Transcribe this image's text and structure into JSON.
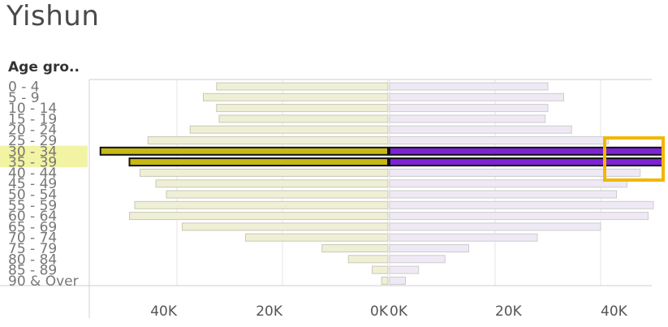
{
  "header": {
    "title": "Yishun",
    "axis_header": "Age gro.."
  },
  "colors": {
    "female_muted_fill": "#efefd6",
    "female_muted_stroke": "#c9c9b4",
    "male_muted_fill": "#efe9f5",
    "male_muted_stroke": "#cccccc",
    "female_highlight_fill": "#c8b813",
    "male_highlight_fill": "#7e22d6",
    "highlight_stroke": "#111111",
    "row_highlight": "#f3f3a4",
    "selection_box": "#f2b600",
    "grid": "#e6e6e6"
  },
  "chart_data": {
    "type": "bar",
    "orientation": "horizontal",
    "layout": "population-pyramid",
    "categories": [
      "0 - 4",
      "5 - 9",
      "10 - 14",
      "15 - 19",
      "20 - 24",
      "25 - 29",
      "30 - 34",
      "35 - 39",
      "40 - 44",
      "45 - 49",
      "50 - 54",
      "55 - 59",
      "60 - 64",
      "65 - 69",
      "70 - 74",
      "75 - 79",
      "80 - 84",
      "85 - 89",
      "90 & Over"
    ],
    "series": [
      {
        "side": "left",
        "values": [
          32500,
          35000,
          32500,
          32000,
          37500,
          45500,
          54500,
          49000,
          47000,
          44000,
          42000,
          48000,
          49000,
          39000,
          27000,
          12500,
          7500,
          3000,
          1200
        ]
      },
      {
        "side": "right",
        "values": [
          30000,
          33000,
          30000,
          29500,
          34500,
          41500,
          52000,
          52000,
          47500,
          45000,
          43000,
          50000,
          49000,
          40000,
          28000,
          15000,
          10500,
          5500,
          3000
        ]
      }
    ],
    "highlighted_categories": [
      "30 - 34",
      "35 - 39"
    ],
    "x_ticks_left": [
      "40K",
      "20K",
      "0K"
    ],
    "x_ticks_right": [
      "0K",
      "20K",
      "40K"
    ],
    "xlim": [
      0,
      52000
    ],
    "grid": true
  }
}
